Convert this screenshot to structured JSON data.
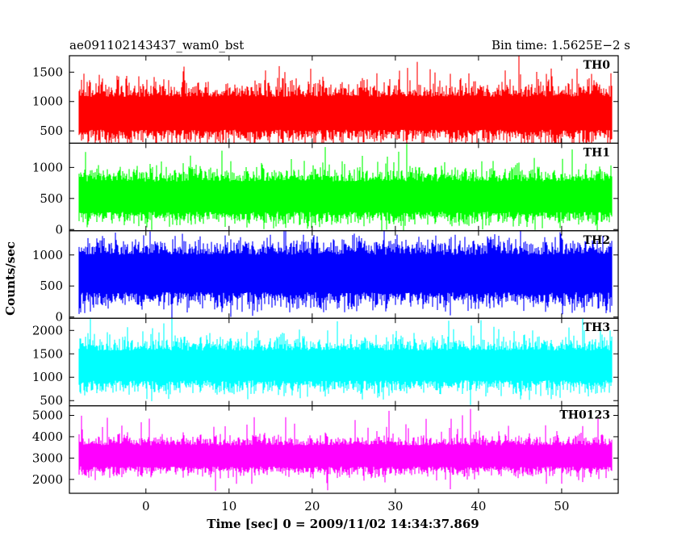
{
  "header": {
    "title": "ae091102143437_wam0_bst",
    "bin_time": "Bin time: 1.5625E−2 s"
  },
  "chart_data": {
    "type": "line",
    "xlabel": "Time [sec] 0 = 2009/11/02 14:34:37.869",
    "ylabel": "Counts/sec",
    "xlim": [
      -9.2,
      56.8
    ],
    "data_xrange": [
      -8,
      56
    ],
    "bin_time_s": 0.015625,
    "x_ticks": [
      0,
      10,
      20,
      30,
      40,
      50
    ],
    "x_tick_labels": [
      "0",
      "10",
      "20",
      "30",
      "40",
      "50"
    ],
    "grid": false,
    "panels": [
      {
        "label": "TH0",
        "color": "#ff0000",
        "ylim": [
          290,
          1780
        ],
        "y_ticks": [
          500,
          1000,
          1500
        ],
        "y_tick_labels": [
          "500",
          "1000",
          "1500"
        ],
        "band_low": 330,
        "band_high": 1350,
        "mean": 800,
        "spike_max": 1780
      },
      {
        "label": "TH1",
        "color": "#00ff00",
        "ylim": [
          -20,
          1390
        ],
        "y_ticks": [
          0,
          500,
          1000
        ],
        "y_tick_labels": [
          "0",
          "500",
          "1000"
        ],
        "band_low": 110,
        "band_high": 1000,
        "mean": 530,
        "spike_max": 1390
      },
      {
        "label": "TH2",
        "color": "#0000ff",
        "ylim": [
          -20,
          1390
        ],
        "y_ticks": [
          0,
          500,
          1000
        ],
        "y_tick_labels": [
          "0",
          "500",
          "1000"
        ],
        "band_low": 150,
        "band_high": 1250,
        "mean": 700,
        "spike_max": 1390
      },
      {
        "label": "TH3",
        "color": "#00ffff",
        "ylim": [
          390,
          2260
        ],
        "y_ticks": [
          500,
          1000,
          1500,
          2000
        ],
        "y_tick_labels": [
          "500",
          "1000",
          "1500",
          "2000"
        ],
        "band_low": 640,
        "band_high": 1800,
        "mean": 1250,
        "spike_max": 2260
      },
      {
        "label": "TH0123",
        "color": "#ff00ff",
        "ylim": [
          1350,
          5450
        ],
        "y_ticks": [
          2000,
          3000,
          4000,
          5000
        ],
        "y_tick_labels": [
          "2000",
          "3000",
          "4000",
          "5000"
        ],
        "band_low": 2200,
        "band_high": 4000,
        "mean": 3100,
        "spike_max": 5300
      }
    ]
  }
}
